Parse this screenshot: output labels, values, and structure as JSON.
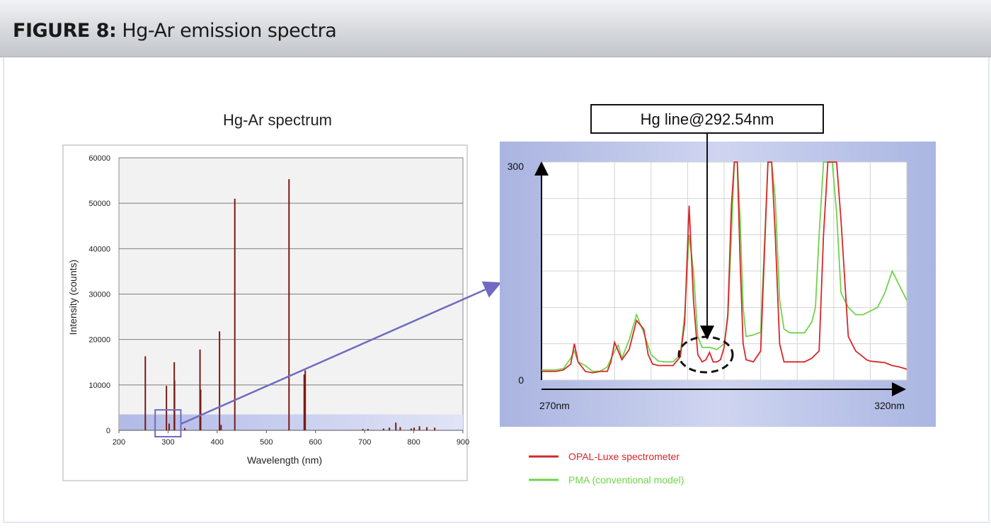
{
  "header": {
    "figure_label": "FIGURE 8:",
    "figure_title": "Hg-Ar emission spectra"
  },
  "colors": {
    "opal": "#d9262a",
    "pma": "#6fd44a",
    "overview_peaks": "#7a1a14"
  },
  "chart_data": [
    {
      "type": "line",
      "title": "Hg-Ar spectrum",
      "xlabel": "Wavelength (nm)",
      "ylabel": "Intensity (counts)",
      "xlim": [
        200,
        900
      ],
      "ylim": [
        0,
        60000
      ],
      "x_ticks": [
        "200",
        "300",
        "400",
        "500",
        "600",
        "700",
        "800",
        "900"
      ],
      "y_ticks": [
        "0",
        "10000",
        "20000",
        "30000",
        "40000",
        "50000",
        "60000"
      ],
      "grid": "horizontal",
      "series": [
        {
          "x": [
            253.7,
            296.7,
            302.2,
            312.6,
            313.2,
            334.1,
            365.0,
            366.3,
            404.7,
            407.8,
            435.8,
            546.1,
            577.0,
            579.1,
            696.5,
            706.7,
            738.4,
            750.4,
            763.5,
            772.4,
            794.8,
            800.6,
            811.5,
            826.5,
            842.5
          ],
          "values": [
            16300,
            9800,
            1500,
            15000,
            11000,
            500,
            17800,
            9000,
            21800,
            1200,
            51000,
            55300,
            12300,
            13200,
            300,
            300,
            400,
            600,
            1700,
            700,
            400,
            600,
            900,
            700,
            600
          ]
        }
      ],
      "highlight_box_nm": [
        278,
        326
      ],
      "highlight_band_counts": [
        0,
        3500
      ]
    },
    {
      "type": "line",
      "title": "",
      "annotation": "Hg line@292.54nm",
      "x_start_label": "270nm",
      "x_end_label": "320nm",
      "xlim": [
        270,
        320
      ],
      "ylim": [
        0,
        300
      ],
      "y_ticks": [
        "0",
        "300"
      ],
      "grid": "both",
      "legend_position": "bottom-right",
      "series": [
        {
          "name": "OPAL-Luxe spectrometer",
          "x": [
            270,
            271,
            272,
            273,
            274,
            274.5,
            275,
            276,
            277,
            278,
            279,
            279.5,
            280,
            281,
            282,
            283,
            284,
            284.6,
            285.2,
            286,
            287,
            288,
            289,
            289.6,
            290.2,
            290.8,
            291.4,
            292,
            292.5,
            293,
            293.5,
            294,
            294.5,
            295,
            295.5,
            296,
            296.4,
            296.8,
            297.2,
            297.6,
            298,
            299,
            300,
            301,
            301.5,
            302,
            302.6,
            303.2,
            304,
            305,
            306,
            307,
            308,
            308.6,
            309.2,
            309.8,
            310.4,
            311,
            312,
            313,
            314,
            314.5,
            315,
            316,
            317,
            318,
            319,
            320
          ],
          "values": [
            12,
            12,
            12,
            14,
            22,
            50,
            25,
            12,
            10,
            12,
            12,
            25,
            52,
            28,
            42,
            82,
            70,
            35,
            22,
            20,
            20,
            20,
            32,
            80,
            240,
            110,
            35,
            25,
            28,
            38,
            25,
            25,
            28,
            45,
            90,
            240,
            300,
            300,
            160,
            50,
            28,
            25,
            40,
            300,
            300,
            200,
            50,
            25,
            25,
            25,
            25,
            30,
            40,
            200,
            300,
            300,
            300,
            220,
            60,
            40,
            32,
            28,
            26,
            25,
            24,
            20,
            18,
            15
          ]
        },
        {
          "name": "PMA (conventional model)",
          "x": [
            270,
            271,
            272,
            273,
            274,
            274.5,
            275,
            276,
            277,
            278,
            279,
            280,
            280.5,
            281,
            282,
            283,
            284,
            285,
            286,
            287,
            288,
            289,
            289.6,
            290.2,
            290.8,
            291.4,
            292,
            293,
            294,
            295,
            295.5,
            296,
            296.4,
            296.8,
            297.2,
            297.6,
            298,
            299,
            300,
            301,
            301.5,
            302,
            302.6,
            303.2,
            304,
            305,
            306,
            307,
            307.5,
            308,
            308.6,
            309.2,
            309.8,
            310.4,
            311,
            312,
            313,
            314,
            315,
            316,
            317,
            318,
            319,
            320
          ],
          "values": [
            14,
            14,
            14,
            16,
            30,
            40,
            25,
            20,
            12,
            12,
            18,
            40,
            48,
            30,
            55,
            90,
            65,
            35,
            26,
            25,
            25,
            35,
            90,
            200,
            150,
            60,
            45,
            45,
            42,
            50,
            85,
            200,
            300,
            300,
            220,
            100,
            60,
            62,
            66,
            300,
            300,
            250,
            110,
            70,
            65,
            65,
            65,
            80,
            100,
            200,
            300,
            300,
            300,
            230,
            120,
            100,
            90,
            90,
            95,
            100,
            120,
            150,
            130,
            110
          ]
        }
      ]
    }
  ]
}
